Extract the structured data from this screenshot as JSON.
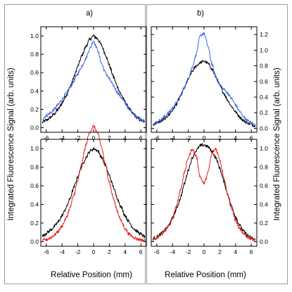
{
  "colors": {
    "reference": "#000000",
    "blue": "#3a62e8",
    "red": "#ee1c1c"
  },
  "common": {
    "xlabel": "Relative Position (mm)",
    "ylabel": "Integrated Fluorescence Signal (arb. units)",
    "xlim": [
      -6.7,
      6.7
    ],
    "ylim": [
      -0.05,
      1.1
    ],
    "ylim_right": [
      -0.05,
      1.3
    ],
    "xticks": [
      -6,
      -4,
      -2,
      0,
      2,
      4,
      6
    ],
    "yticks_left": [
      0.0,
      0.2,
      0.4,
      0.6,
      0.8,
      1.0
    ],
    "yticks_right": [
      0.0,
      0.2,
      0.4,
      0.6,
      0.8,
      1.0,
      1.2
    ]
  },
  "panels": [
    {
      "label": "a)"
    },
    {
      "label": "b)"
    }
  ],
  "chart_data": [
    {
      "type": "line",
      "panel": "a-top",
      "x": [
        -6.5,
        -6,
        -5.5,
        -5,
        -4.5,
        -4,
        -3.5,
        -3,
        -2.5,
        -2,
        -1.5,
        -1,
        -0.5,
        0,
        0.5,
        1,
        1.5,
        2,
        2.5,
        3,
        3.5,
        4,
        4.5,
        5,
        5.5,
        6,
        6.5
      ],
      "series": [
        {
          "color": "#000000",
          "values": [
            0.06,
            0.08,
            0.11,
            0.15,
            0.2,
            0.27,
            0.35,
            0.44,
            0.55,
            0.67,
            0.78,
            0.88,
            0.96,
            1.0,
            0.97,
            0.9,
            0.8,
            0.68,
            0.56,
            0.45,
            0.36,
            0.28,
            0.21,
            0.15,
            0.11,
            0.08,
            0.06
          ]
        },
        {
          "color": "#3a62e8",
          "values": [
            0.1,
            0.13,
            0.16,
            0.2,
            0.25,
            0.31,
            0.37,
            0.44,
            0.51,
            0.59,
            0.67,
            0.75,
            0.86,
            0.95,
            0.85,
            0.7,
            0.6,
            0.53,
            0.46,
            0.39,
            0.33,
            0.27,
            0.21,
            0.16,
            0.12,
            0.09,
            0.07
          ]
        }
      ]
    },
    {
      "type": "line",
      "panel": "b-top",
      "x": [
        -6.5,
        -6,
        -5.5,
        -5,
        -4.5,
        -4,
        -3.5,
        -3,
        -2.5,
        -2,
        -1.5,
        -1,
        -0.5,
        0,
        0.5,
        1,
        1.5,
        2,
        2.5,
        3,
        3.5,
        4,
        4.5,
        5,
        5.5,
        6,
        6.5
      ],
      "series": [
        {
          "color": "#000000",
          "values": [
            0.05,
            0.07,
            0.09,
            0.12,
            0.17,
            0.23,
            0.31,
            0.41,
            0.52,
            0.63,
            0.73,
            0.8,
            0.84,
            0.86,
            0.83,
            0.76,
            0.66,
            0.55,
            0.45,
            0.36,
            0.28,
            0.21,
            0.15,
            0.1,
            0.07,
            0.05,
            0.03
          ]
        },
        {
          "color": "#3a62e8",
          "values": [
            0.05,
            0.08,
            0.11,
            0.15,
            0.2,
            0.26,
            0.33,
            0.42,
            0.52,
            0.64,
            0.78,
            0.95,
            1.18,
            1.22,
            1.05,
            0.82,
            0.65,
            0.56,
            0.5,
            0.45,
            0.38,
            0.3,
            0.22,
            0.15,
            0.1,
            0.07,
            0.05
          ]
        }
      ]
    },
    {
      "type": "line",
      "panel": "a-bottom",
      "x": [
        -6.5,
        -6,
        -5.5,
        -5,
        -4.5,
        -4,
        -3.5,
        -3,
        -2.5,
        -2,
        -1.5,
        -1,
        -0.5,
        0,
        0.5,
        1,
        1.5,
        2,
        2.5,
        3,
        3.5,
        4,
        4.5,
        5,
        5.5,
        6,
        6.5
      ],
      "series": [
        {
          "color": "#000000",
          "values": [
            0.06,
            0.09,
            0.12,
            0.16,
            0.21,
            0.28,
            0.36,
            0.46,
            0.58,
            0.7,
            0.81,
            0.9,
            0.97,
            1.0,
            0.98,
            0.91,
            0.82,
            0.71,
            0.59,
            0.47,
            0.37,
            0.28,
            0.21,
            0.15,
            0.11,
            0.08,
            0.05
          ]
        },
        {
          "color": "#ee1c1c",
          "values": [
            0.01,
            0.02,
            0.04,
            0.07,
            0.11,
            0.17,
            0.25,
            0.36,
            0.5,
            0.66,
            0.84,
            1.03,
            1.18,
            1.24,
            1.17,
            1.02,
            0.83,
            0.64,
            0.47,
            0.33,
            0.22,
            0.14,
            0.08,
            0.05,
            0.03,
            0.02,
            0.01
          ]
        }
      ]
    },
    {
      "type": "line",
      "panel": "b-bottom",
      "x": [
        -6.5,
        -6,
        -5.5,
        -5,
        -4.5,
        -4,
        -3.5,
        -3,
        -2.5,
        -2,
        -1.5,
        -1,
        -0.5,
        0,
        0.5,
        1,
        1.5,
        2,
        2.5,
        3,
        3.5,
        4,
        4.5,
        5,
        5.5,
        6,
        6.5
      ],
      "series": [
        {
          "color": "#000000",
          "values": [
            0.03,
            0.05,
            0.08,
            0.12,
            0.17,
            0.25,
            0.35,
            0.47,
            0.62,
            0.77,
            0.9,
            0.98,
            1.03,
            1.04,
            1.02,
            0.97,
            0.9,
            0.79,
            0.65,
            0.51,
            0.38,
            0.27,
            0.18,
            0.11,
            0.07,
            0.04,
            0.02
          ]
        },
        {
          "color": "#ee1c1c",
          "values": [
            0.02,
            0.04,
            0.07,
            0.11,
            0.17,
            0.26,
            0.39,
            0.55,
            0.74,
            0.9,
            1.0,
            0.92,
            0.7,
            0.62,
            0.74,
            0.95,
            1.0,
            0.88,
            0.7,
            0.51,
            0.35,
            0.23,
            0.14,
            0.08,
            0.05,
            0.03,
            0.02
          ]
        }
      ]
    }
  ]
}
